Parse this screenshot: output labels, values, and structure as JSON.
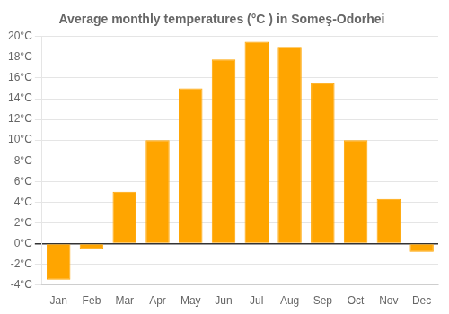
{
  "chart_data": {
    "type": "bar",
    "title": "Average monthly temperatures (°C ) in Someş-Odorhei",
    "categories": [
      "Jan",
      "Feb",
      "Mar",
      "Apr",
      "May",
      "Jun",
      "Jul",
      "Aug",
      "Sep",
      "Oct",
      "Nov",
      "Dec"
    ],
    "values": [
      -3.5,
      -0.5,
      5.0,
      10.0,
      15.0,
      17.8,
      19.5,
      19.0,
      15.5,
      10.0,
      4.3,
      -0.8
    ],
    "color": "#FFA500",
    "ylim": [
      -4,
      20
    ],
    "yticks": [
      {
        "value": -4,
        "label": "-4°C"
      },
      {
        "value": -2,
        "label": "-2°C"
      },
      {
        "value": 0,
        "label": "0°C"
      },
      {
        "value": 2,
        "label": "2°C"
      },
      {
        "value": 4,
        "label": "4°C"
      },
      {
        "value": 6,
        "label": "6°C"
      },
      {
        "value": 8,
        "label": "8°C"
      },
      {
        "value": 10,
        "label": "10°C"
      },
      {
        "value": 12,
        "label": "12°C"
      },
      {
        "value": 14,
        "label": "14°C"
      },
      {
        "value": 16,
        "label": "16°C"
      },
      {
        "value": 18,
        "label": "18°C"
      },
      {
        "value": 20,
        "label": "20°C"
      }
    ],
    "grid": true
  }
}
